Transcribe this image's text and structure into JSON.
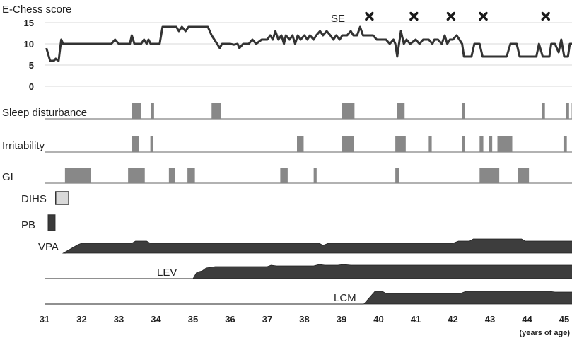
{
  "chart_data": {
    "type": "line",
    "title": "E-Chess score",
    "xlabel": "(years of age)",
    "x_range": [
      31,
      45.3
    ],
    "x_ticks": [
      "31",
      "32",
      "33",
      "34",
      "35",
      "36",
      "37",
      "38",
      "39",
      "40",
      "41",
      "42",
      "43",
      "44",
      "45"
    ],
    "score": {
      "ylim": [
        0,
        15
      ],
      "y_ticks": [
        "0",
        "5",
        "10",
        "15"
      ],
      "points": [
        [
          31.05,
          9
        ],
        [
          31.15,
          6
        ],
        [
          31.25,
          6
        ],
        [
          31.3,
          6.5
        ],
        [
          31.38,
          6
        ],
        [
          31.45,
          11
        ],
        [
          31.5,
          10
        ],
        [
          32.0,
          10
        ],
        [
          32.8,
          10
        ],
        [
          32.9,
          11
        ],
        [
          33.0,
          10
        ],
        [
          33.3,
          10
        ],
        [
          33.35,
          12
        ],
        [
          33.42,
          10
        ],
        [
          33.6,
          10
        ],
        [
          33.68,
          11
        ],
        [
          33.75,
          10
        ],
        [
          33.8,
          11
        ],
        [
          33.86,
          10
        ],
        [
          34.1,
          10
        ],
        [
          34.18,
          14
        ],
        [
          34.55,
          14
        ],
        [
          34.62,
          13
        ],
        [
          34.7,
          14
        ],
        [
          34.8,
          13
        ],
        [
          34.88,
          14
        ],
        [
          35.4,
          14
        ],
        [
          35.5,
          12
        ],
        [
          35.65,
          10
        ],
        [
          35.72,
          9
        ],
        [
          35.78,
          10
        ],
        [
          36.0,
          10
        ],
        [
          36.1,
          9.8
        ],
        [
          36.2,
          10
        ],
        [
          36.25,
          9
        ],
        [
          36.35,
          10
        ],
        [
          36.5,
          10
        ],
        [
          36.6,
          11
        ],
        [
          36.7,
          10
        ],
        [
          36.85,
          11
        ],
        [
          37.0,
          11
        ],
        [
          37.08,
          12
        ],
        [
          37.15,
          11
        ],
        [
          37.22,
          13
        ],
        [
          37.3,
          11
        ],
        [
          37.38,
          12
        ],
        [
          37.45,
          10
        ],
        [
          37.5,
          12
        ],
        [
          37.6,
          11
        ],
        [
          37.68,
          12
        ],
        [
          37.75,
          10
        ],
        [
          37.82,
          12
        ],
        [
          37.9,
          11
        ],
        [
          38.0,
          12
        ],
        [
          38.08,
          11
        ],
        [
          38.15,
          12
        ],
        [
          38.25,
          11
        ],
        [
          38.32,
          12
        ],
        [
          38.42,
          13
        ],
        [
          38.5,
          12
        ],
        [
          38.6,
          13
        ],
        [
          38.7,
          12
        ],
        [
          38.78,
          11
        ],
        [
          38.86,
          12
        ],
        [
          38.95,
          11
        ],
        [
          39.02,
          12
        ],
        [
          39.15,
          12
        ],
        [
          39.25,
          13
        ],
        [
          39.32,
          12
        ],
        [
          39.42,
          12
        ],
        [
          39.5,
          14
        ],
        [
          39.58,
          12
        ],
        [
          39.85,
          12
        ],
        [
          39.95,
          11
        ],
        [
          40.2,
          11
        ],
        [
          40.3,
          10
        ],
        [
          40.4,
          11
        ],
        [
          40.45,
          10
        ],
        [
          40.5,
          7
        ],
        [
          40.6,
          13
        ],
        [
          40.68,
          10
        ],
        [
          40.75,
          11
        ],
        [
          40.85,
          10
        ],
        [
          41.0,
          11
        ],
        [
          41.1,
          10
        ],
        [
          41.2,
          11
        ],
        [
          41.35,
          11
        ],
        [
          41.45,
          10
        ],
        [
          41.5,
          11
        ],
        [
          41.6,
          11
        ],
        [
          41.7,
          10
        ],
        [
          41.78,
          12
        ],
        [
          41.85,
          10
        ],
        [
          41.92,
          11
        ],
        [
          42.0,
          11
        ],
        [
          42.1,
          12
        ],
        [
          42.25,
          10
        ],
        [
          42.3,
          7
        ],
        [
          42.5,
          7
        ],
        [
          42.58,
          10
        ],
        [
          42.72,
          10
        ],
        [
          42.8,
          7
        ],
        [
          43.45,
          7
        ],
        [
          43.55,
          10
        ],
        [
          43.72,
          10
        ],
        [
          43.8,
          7
        ],
        [
          44.25,
          7
        ],
        [
          44.32,
          10
        ],
        [
          44.42,
          7
        ],
        [
          44.6,
          7
        ],
        [
          44.65,
          10
        ],
        [
          44.75,
          10
        ],
        [
          44.85,
          8
        ],
        [
          44.92,
          11
        ],
        [
          45.0,
          7
        ],
        [
          45.1,
          7
        ],
        [
          45.15,
          10
        ],
        [
          45.3,
          10
        ]
      ]
    },
    "annotations": {
      "se_label": "SE",
      "se_events": [
        39.75,
        40.95,
        41.95,
        42.82,
        44.5
      ]
    },
    "event_rows": [
      {
        "label": "Sleep disturbance",
        "events": [
          [
            33.35,
            33.6
          ],
          [
            33.87,
            33.95
          ],
          [
            35.5,
            35.75
          ],
          [
            39.0,
            39.35
          ],
          [
            40.5,
            40.7
          ],
          [
            42.25,
            42.33
          ],
          [
            44.4,
            44.48
          ],
          [
            45.05,
            45.13
          ],
          [
            45.2,
            45.3
          ]
        ]
      },
      {
        "label": "Irritability",
        "events": [
          [
            33.35,
            33.55
          ],
          [
            33.85,
            33.93
          ],
          [
            37.8,
            37.98
          ],
          [
            39.0,
            39.33
          ],
          [
            40.45,
            40.73
          ],
          [
            41.35,
            41.43
          ],
          [
            42.25,
            42.33
          ],
          [
            42.72,
            42.82
          ],
          [
            42.97,
            43.06
          ],
          [
            43.2,
            43.6
          ],
          [
            44.98,
            45.07
          ]
        ]
      },
      {
        "label": "GI",
        "events": [
          [
            31.55,
            32.25
          ],
          [
            33.25,
            33.7
          ],
          [
            34.35,
            34.52
          ],
          [
            34.85,
            35.05
          ],
          [
            37.35,
            37.55
          ],
          [
            38.25,
            38.33
          ],
          [
            40.45,
            40.55
          ],
          [
            42.72,
            43.25
          ],
          [
            43.75,
            44.05
          ]
        ]
      }
    ],
    "short_rows": [
      {
        "label": "DIHS",
        "events": [
          [
            31.3,
            31.65
          ]
        ],
        "color": "#d9d9d9"
      },
      {
        "label": "PB",
        "events": [
          [
            31.1,
            31.28
          ]
        ],
        "color": "#3a3a3a"
      }
    ],
    "drug_rows": [
      {
        "label": "VPA",
        "start": 31.5,
        "points": [
          [
            31.5,
            0
          ],
          [
            31.9,
            0.6
          ],
          [
            32.0,
            0.7
          ],
          [
            33.35,
            0.7
          ],
          [
            33.45,
            0.85
          ],
          [
            33.75,
            0.85
          ],
          [
            33.85,
            0.7
          ],
          [
            38.4,
            0.7
          ],
          [
            38.5,
            0.55
          ],
          [
            38.65,
            0.7
          ],
          [
            42.0,
            0.7
          ],
          [
            42.15,
            0.85
          ],
          [
            42.45,
            0.85
          ],
          [
            42.55,
            1.0
          ],
          [
            43.85,
            1.0
          ],
          [
            43.95,
            0.85
          ],
          [
            45.3,
            0.85
          ]
        ]
      },
      {
        "label": "LEV",
        "start": 35.0,
        "points": [
          [
            35.0,
            0
          ],
          [
            35.1,
            0.45
          ],
          [
            35.25,
            0.55
          ],
          [
            35.35,
            0.75
          ],
          [
            35.6,
            0.85
          ],
          [
            37.0,
            0.85
          ],
          [
            37.1,
            0.95
          ],
          [
            37.25,
            0.9
          ],
          [
            38.25,
            0.9
          ],
          [
            38.4,
            1.0
          ],
          [
            38.55,
            0.95
          ],
          [
            38.9,
            0.95
          ],
          [
            39.05,
            1.0
          ],
          [
            39.25,
            0.95
          ],
          [
            45.3,
            0.95
          ]
        ]
      },
      {
        "label": "LCM",
        "start": 39.6,
        "points": [
          [
            39.6,
            0
          ],
          [
            39.75,
            0.45
          ],
          [
            39.9,
            0.9
          ],
          [
            40.1,
            0.9
          ],
          [
            40.2,
            0.75
          ],
          [
            42.2,
            0.75
          ],
          [
            42.35,
            0.9
          ],
          [
            44.6,
            0.9
          ],
          [
            44.75,
            0.85
          ],
          [
            45.3,
            0.85
          ]
        ]
      }
    ],
    "colors": {
      "line": "#333333",
      "event_bar": "#888888",
      "baseline": "#999999",
      "drug_fill": "#3d3d3d",
      "grid": "#d9d9d9"
    }
  }
}
